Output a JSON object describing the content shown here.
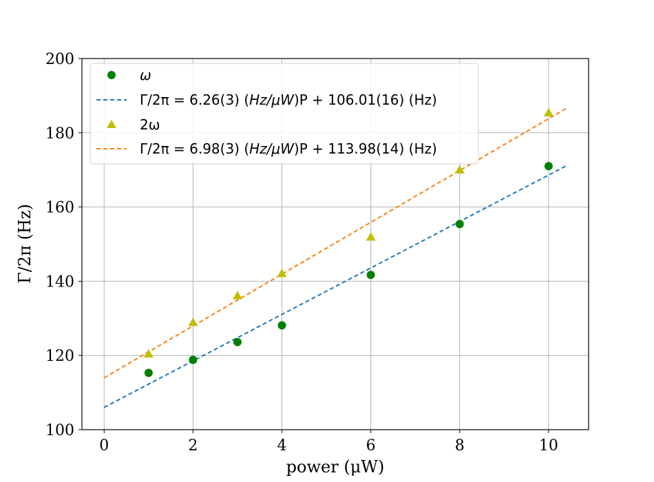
{
  "chart_data": {
    "type": "scatter",
    "xlabel": "power (μW)",
    "ylabel": "Γ/2π (Hz)",
    "xlim": [
      -0.5,
      10.9
    ],
    "ylim": [
      100,
      200
    ],
    "xticks": [
      0,
      2,
      4,
      6,
      8,
      10
    ],
    "yticks": [
      100,
      120,
      140,
      160,
      180,
      200
    ],
    "grid": true,
    "legend_position": "top-left",
    "series": [
      {
        "name": "ω",
        "kind": "scatter",
        "marker": "circle",
        "color": "#008000",
        "x": [
          1,
          2,
          3,
          4,
          6,
          8,
          10
        ],
        "y": [
          115.3,
          118.8,
          123.6,
          128.1,
          141.7,
          155.4,
          171.0
        ]
      },
      {
        "name": "Γ/2π = 6.26(3) (Hz/μW)P + 106.01(16) (Hz)",
        "kind": "fit",
        "style": "dashed",
        "color": "#1f77b4",
        "slope": 6.26,
        "intercept": 106.01,
        "x_range": [
          0,
          10.4
        ]
      },
      {
        "name": "2ω",
        "kind": "scatter",
        "marker": "triangle",
        "color": "#bfbf00",
        "x": [
          1,
          2,
          3,
          4,
          6,
          8,
          10
        ],
        "y": [
          120.4,
          128.9,
          136.1,
          142.1,
          151.9,
          170.0,
          185.4
        ]
      },
      {
        "name": "Γ/2π = 6.98(3) (Hz/μW)P + 113.98(14) (Hz)",
        "kind": "fit",
        "style": "dashed",
        "color": "#ff7f0e",
        "slope": 6.98,
        "intercept": 113.98,
        "x_range": [
          0,
          10.4
        ]
      }
    ],
    "legend": {
      "entry_1": "ω",
      "entry_2_prefix": "Γ/2π = 6.26(3) (",
      "entry_2_unit": "Hz/μW",
      "entry_2_suffix": ")P + 106.01(16) (Hz)",
      "entry_3": "2ω",
      "entry_4_prefix": "Γ/2π = 6.98(3) (",
      "entry_4_unit": "Hz/μW",
      "entry_4_suffix": ")P + 113.98(14) (Hz)"
    }
  }
}
